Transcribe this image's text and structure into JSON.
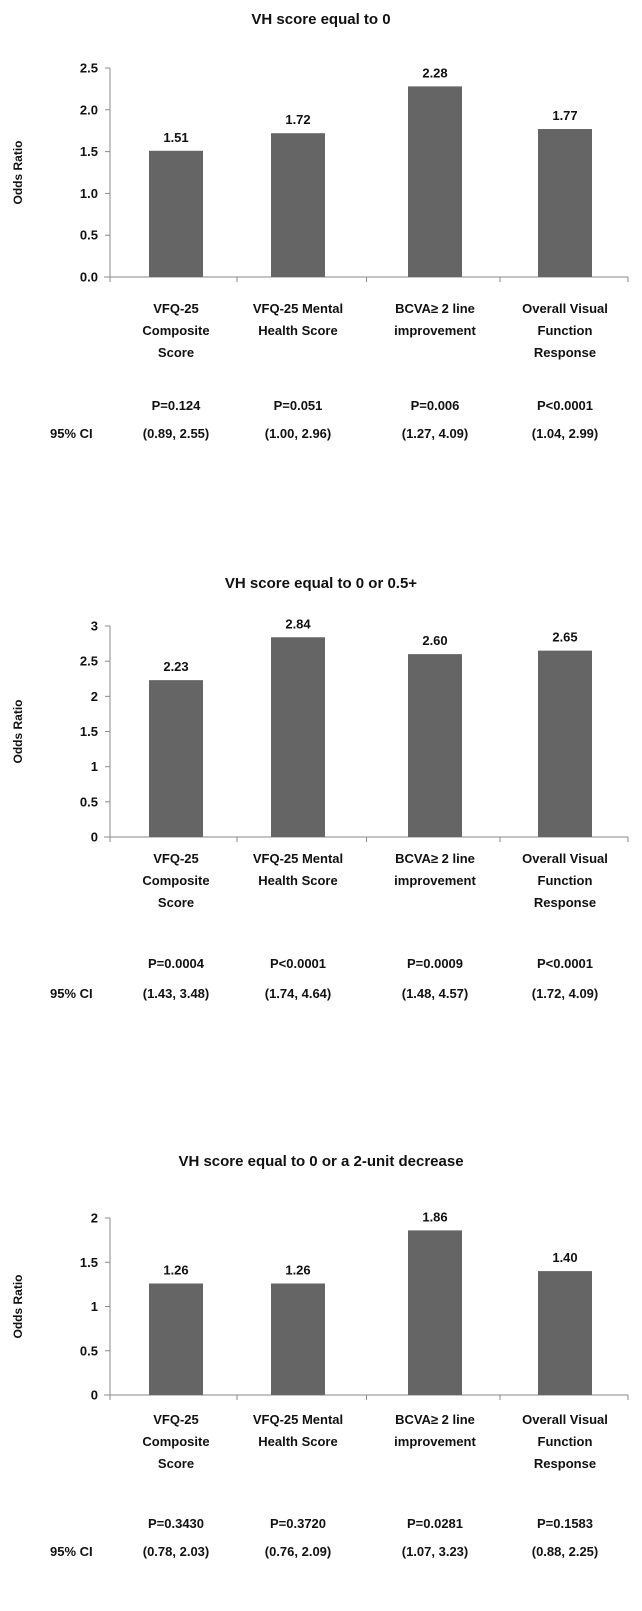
{
  "chart_data": [
    {
      "type": "bar",
      "title": "VH score equal to 0",
      "ylabel": "Odds Ratio",
      "ylim": [
        0,
        2.5
      ],
      "yticks": [
        "0.0",
        "0.5",
        "1.0",
        "1.5",
        "2.0",
        "2.5"
      ],
      "categories": [
        [
          "VFQ-25",
          "Composite",
          "Score"
        ],
        [
          "VFQ-25 Mental",
          "Health Score"
        ],
        [
          "BCVA≥ 2 line",
          "improvement"
        ],
        [
          "Overall Visual",
          "Function",
          "Response"
        ]
      ],
      "values": [
        1.51,
        1.72,
        2.28,
        1.77
      ],
      "value_labels": [
        "1.51",
        "1.72",
        "2.28",
        "1.77"
      ],
      "p_values": [
        "P=0.124",
        "P=0.051",
        "P=0.006",
        "P<0.0001"
      ],
      "ci_label": "95% CI",
      "ci": [
        "(0.89, 2.55)",
        "(1.00, 2.96)",
        "(1.27, 4.09)",
        "(1.04, 2.99)"
      ],
      "bar_color": "#656565"
    },
    {
      "type": "bar",
      "title": "VH score equal to 0 or 0.5+",
      "ylabel": "Odds Ratio",
      "ylim": [
        0,
        3
      ],
      "yticks": [
        "0",
        "0.5",
        "1",
        "1.5",
        "2",
        "2.5",
        "3"
      ],
      "categories": [
        [
          "VFQ-25",
          "Composite",
          "Score"
        ],
        [
          "VFQ-25 Mental",
          "Health Score"
        ],
        [
          "BCVA≥ 2 line",
          "improvement"
        ],
        [
          "Overall Visual",
          "Function",
          "Response"
        ]
      ],
      "values": [
        2.23,
        2.84,
        2.6,
        2.65
      ],
      "value_labels": [
        "2.23",
        "2.84",
        "2.60",
        "2.65"
      ],
      "p_values": [
        "P=0.0004",
        "P<0.0001",
        "P=0.0009",
        "P<0.0001"
      ],
      "ci_label": "95% CI",
      "ci": [
        "(1.43, 3.48)",
        "(1.74, 4.64)",
        "(1.48, 4.57)",
        "(1.72, 4.09)"
      ],
      "bar_color": "#656565"
    },
    {
      "type": "bar",
      "title": "VH score equal to 0 or a 2-unit decrease",
      "ylabel": "Odds Ratio",
      "ylim": [
        0,
        2
      ],
      "yticks": [
        "0",
        "0.5",
        "1",
        "1.5",
        "2"
      ],
      "categories": [
        [
          "VFQ-25",
          "Composite",
          "Score"
        ],
        [
          "VFQ-25 Mental",
          "Health Score"
        ],
        [
          "BCVA≥ 2 line",
          "improvement"
        ],
        [
          "Overall Visual",
          "Function",
          "Response"
        ]
      ],
      "values": [
        1.26,
        1.26,
        1.86,
        1.4
      ],
      "value_labels": [
        "1.26",
        "1.26",
        "1.86",
        "1.40"
      ],
      "p_values": [
        "P=0.3430",
        "P=0.3720",
        "P=0.0281",
        "P=0.1583"
      ],
      "ci_label": "95% CI",
      "ci": [
        "(0.78, 2.03)",
        "(0.76, 2.09)",
        "(1.07, 3.23)",
        "(0.88, 2.25)"
      ],
      "bar_color": "#656565"
    }
  ]
}
